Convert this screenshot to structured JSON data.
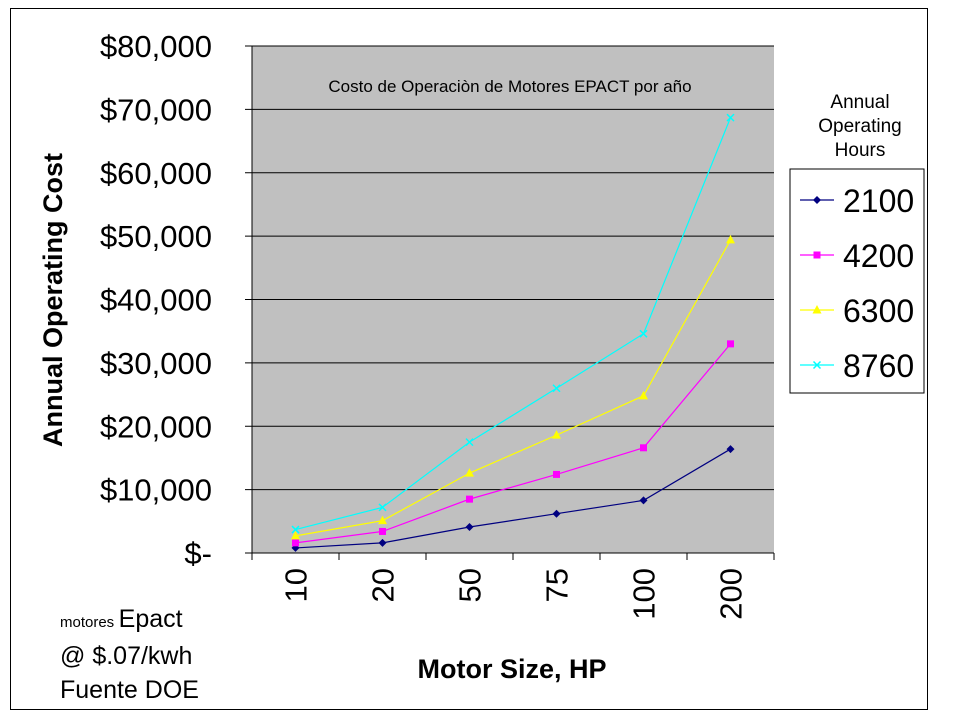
{
  "chart_data": {
    "type": "line",
    "title": "Costo de Operaciòn de Motores EPACT por año",
    "xlabel": "Motor Size, HP",
    "ylabel": "Annual Operating Cost",
    "categories": [
      "10",
      "20",
      "50",
      "75",
      "100",
      "200"
    ],
    "ylim": [
      0,
      80000
    ],
    "yticks": [
      0,
      10000,
      20000,
      30000,
      40000,
      50000,
      60000,
      70000,
      80000
    ],
    "ytick_labels": [
      "$-",
      "$10,000",
      "$20,000",
      "$30,000",
      "$40,000",
      "$50,000",
      "$60,000",
      "$70,000",
      "$80,000"
    ],
    "grid": true,
    "legend_title": "Annual Operating Hours",
    "legend_position": "right",
    "series": [
      {
        "name": "2100",
        "values": [
          800,
          1600,
          4100,
          6200,
          8300,
          16400
        ],
        "color": "#000080",
        "marker": "diamond"
      },
      {
        "name": "4200",
        "values": [
          1600,
          3400,
          8500,
          12400,
          16600,
          33000
        ],
        "color": "#ff00ff",
        "marker": "square"
      },
      {
        "name": "6300",
        "values": [
          2700,
          5100,
          12600,
          18600,
          24800,
          49400
        ],
        "color": "#ffff00",
        "marker": "triangle"
      },
      {
        "name": "8760",
        "values": [
          3700,
          7200,
          17500,
          26000,
          34600,
          68700
        ],
        "color": "#00ffff",
        "marker": "x"
      }
    ]
  },
  "colors": {
    "plot_bg": "#c0c0c0"
  },
  "notes": {
    "line1_small": "motores",
    "line1_large": "Epact",
    "line2": "@ $.07/kwh",
    "line3": "Fuente DOE"
  }
}
